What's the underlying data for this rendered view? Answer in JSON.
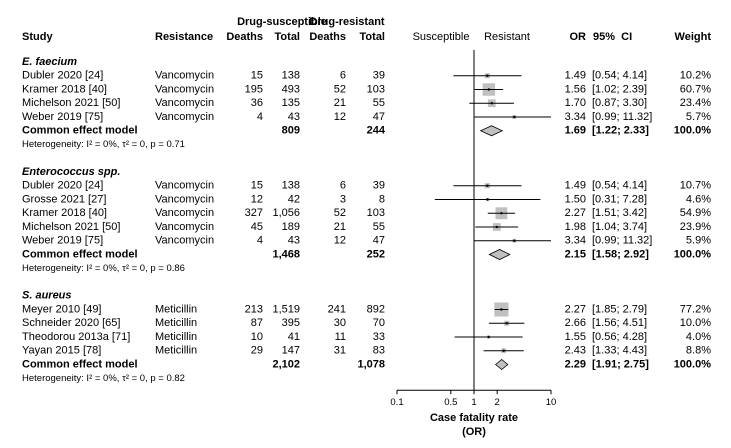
{
  "chart_data": {
    "type": "forest",
    "headers": {
      "study": "Study",
      "resistance": "Resistance",
      "ds_group": "Drug-susceptible",
      "ds_deaths": "Deaths",
      "ds_total": "Total",
      "dr_group": "Drug-resistant",
      "dr_deaths": "Deaths",
      "dr_total": "Total",
      "direction_left": "Susceptible",
      "direction_right": "Resistant",
      "or": "OR",
      "ci": "95%  CI",
      "weight": "Weight"
    },
    "xlabel": [
      "Case fatality rate",
      "(OR)"
    ],
    "xscale": "log",
    "xlim": [
      0.1,
      10
    ],
    "xticks": [
      0.1,
      0.5,
      1,
      2,
      10
    ],
    "square_color": "#c0c0c0",
    "diamond_color": "#c0c0c0",
    "groups": [
      {
        "name": "E. faecium",
        "studies": [
          {
            "study": "Dubler 2020 [24]",
            "resistance": "Vancomycin",
            "ds_deaths": 15,
            "ds_total": 138,
            "dr_deaths": 6,
            "dr_total": 39,
            "or": 1.49,
            "ci": [
              0.54,
              4.14
            ],
            "ci_label": "[0.54; 4.14]",
            "weight": 10.2,
            "weight_label": "10.2%"
          },
          {
            "study": "Kramer 2018 [40]",
            "resistance": "Vancomycin",
            "ds_deaths": 195,
            "ds_total": 493,
            "dr_deaths": 52,
            "dr_total": 103,
            "or": 1.56,
            "ci": [
              1.02,
              2.39
            ],
            "ci_label": "[1.02; 2.39]",
            "weight": 60.7,
            "weight_label": "60.7%"
          },
          {
            "study": "Michelson 2021 [50]",
            "resistance": "Vancomycin",
            "ds_deaths": 36,
            "ds_total": 135,
            "dr_deaths": 21,
            "dr_total": 55,
            "or": {
              "value": 1.7,
              "label": "1.70"
            },
            "ci": [
              0.87,
              3.3
            ],
            "ci_label": "[0.87; 3.30]",
            "weight": 23.4,
            "weight_label": "23.4%"
          },
          {
            "study": "Weber 2019 [75]",
            "resistance": "Vancomycin",
            "ds_deaths": 4,
            "ds_total": 43,
            "dr_deaths": 12,
            "dr_total": 47,
            "or": 3.34,
            "ci": [
              0.99,
              11.32
            ],
            "ci_label": "[0.99; 11.32]",
            "weight": 5.7,
            "weight_label": "5.7%"
          }
        ],
        "pooled": {
          "name": "Common effect model",
          "ds_total": 809,
          "dr_total": 244,
          "or": 1.69,
          "ci": [
            1.22,
            2.33
          ],
          "ci_label": "[1.22; 2.33]",
          "weight": 100,
          "weight_label": "100.0%"
        },
        "heterogeneity": "Heterogeneity: I² = 0%, τ² = 0, p = 0.71"
      },
      {
        "name": "Enterococcus spp.",
        "studies": [
          {
            "study": "Dubler 2020 [24]",
            "resistance": "Vancomycin",
            "ds_deaths": 15,
            "ds_total": 138,
            "dr_deaths": 6,
            "dr_total": 39,
            "or": 1.49,
            "ci": [
              0.54,
              4.14
            ],
            "ci_label": "[0.54; 4.14]",
            "weight": 10.7,
            "weight_label": "10.7%"
          },
          {
            "study": "Grosse 2021 [27]",
            "resistance": "Vancomycin",
            "ds_deaths": 12,
            "ds_total": 42,
            "dr_deaths": 3,
            "dr_total": 8,
            "or": {
              "value": 1.5,
              "label": "1.50"
            },
            "ci": [
              0.31,
              7.28
            ],
            "ci_label": "[0.31; 7.28]",
            "weight": 4.6,
            "weight_label": "4.6%"
          },
          {
            "study": "Kramer 2018 [40]",
            "resistance": "Vancomycin",
            "ds_deaths": 327,
            "ds_total": {
              "value": 1056,
              "label": "1,056"
            },
            "dr_deaths": 52,
            "dr_total": 103,
            "or": 2.27,
            "ci": [
              1.51,
              3.42
            ],
            "ci_label": "[1.51; 3.42]",
            "weight": 54.9,
            "weight_label": "54.9%"
          },
          {
            "study": "Michelson 2021 [50]",
            "resistance": "Vancomycin",
            "ds_deaths": 45,
            "ds_total": 189,
            "dr_deaths": 21,
            "dr_total": 55,
            "or": 1.98,
            "ci": [
              1.04,
              3.74
            ],
            "ci_label": "[1.04; 3.74]",
            "weight": 23.9,
            "weight_label": "23.9%"
          },
          {
            "study": "Weber 2019 [75]",
            "resistance": "Vancomycin",
            "ds_deaths": 4,
            "ds_total": 43,
            "dr_deaths": 12,
            "dr_total": 47,
            "or": 3.34,
            "ci": [
              0.99,
              11.32
            ],
            "ci_label": "[0.99; 11.32]",
            "weight": 5.9,
            "weight_label": "5.9%"
          }
        ],
        "pooled": {
          "name": "Common effect model",
          "ds_total": {
            "value": 1468,
            "label": "1,468"
          },
          "dr_total": 252,
          "or": 2.15,
          "ci": [
            1.58,
            2.92
          ],
          "ci_label": "[1.58; 2.92]",
          "weight": 100,
          "weight_label": "100.0%"
        },
        "heterogeneity": "Heterogeneity: I² = 0%, τ² = 0, p = 0.86"
      },
      {
        "name": "S. aureus",
        "studies": [
          {
            "study": "Meyer 2010 [49]",
            "resistance": "Meticillin",
            "ds_deaths": 213,
            "ds_total": {
              "value": 1519,
              "label": "1,519"
            },
            "dr_deaths": 241,
            "dr_total": 892,
            "or": 2.27,
            "ci": [
              1.85,
              2.79
            ],
            "ci_label": "[1.85; 2.79]",
            "weight": 77.2,
            "weight_label": "77.2%"
          },
          {
            "study": "Schneider 2020 [65]",
            "resistance": "Meticillin",
            "ds_deaths": 87,
            "ds_total": 395,
            "dr_deaths": 30,
            "dr_total": 70,
            "or": 2.66,
            "ci": [
              1.56,
              4.51
            ],
            "ci_label": "[1.56; 4.51]",
            "weight": 10,
            "weight_label": "10.0%"
          },
          {
            "study": "Theodorou 2013a [71]",
            "resistance": "Meticillin",
            "ds_deaths": 10,
            "ds_total": 41,
            "dr_deaths": 11,
            "dr_total": 33,
            "or": 1.55,
            "ci": [
              0.56,
              4.28
            ],
            "ci_label": "[0.56; 4.28]",
            "weight": 4,
            "weight_label": "4.0%"
          },
          {
            "study": "Yayan 2015 [78]",
            "resistance": "Meticillin",
            "ds_deaths": 29,
            "ds_total": 147,
            "dr_deaths": 31,
            "dr_total": 83,
            "or": 2.43,
            "ci": [
              1.33,
              4.43
            ],
            "ci_label": "[1.33; 4.43]",
            "weight": 8.8,
            "weight_label": "8.8%"
          }
        ],
        "pooled": {
          "name": "Common effect model",
          "ds_total": {
            "value": 2102,
            "label": "2,102"
          },
          "dr_total": {
            "value": 1078,
            "label": "1,078"
          },
          "or": 2.29,
          "ci": [
            1.91,
            2.75
          ],
          "ci_label": "[1.91; 2.75]",
          "weight": 100,
          "weight_label": "100.0%"
        },
        "heterogeneity": "Heterogeneity: I² = 0%, τ² = 0, p = 0.82"
      }
    ]
  }
}
